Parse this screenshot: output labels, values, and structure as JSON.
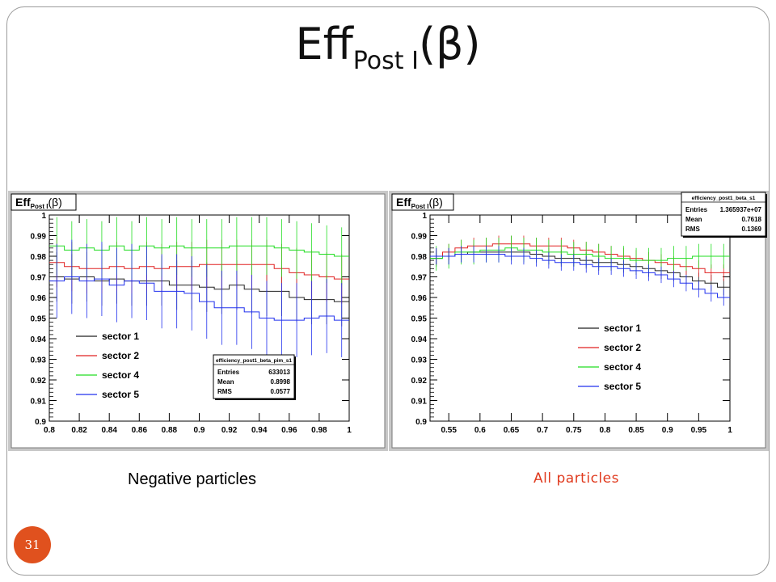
{
  "slide": {
    "title_main": "Eff",
    "title_sub": "Post I",
    "title_tail": "(β)",
    "caption_left": "Negative particles",
    "caption_right": "All particles",
    "page_number": "31"
  },
  "colors": {
    "accent": "#e0511e",
    "caption_right": "#e03a1e"
  },
  "chart_data": [
    {
      "type": "line",
      "title": "Eff",
      "title_sub": "Post I",
      "title_tail": "(β)",
      "xlabel": "",
      "ylabel": "",
      "xlim": [
        0.8,
        1.0
      ],
      "ylim": [
        0.9,
        1.0
      ],
      "x_ticks": [
        "0.8",
        "0.82",
        "0.84",
        "0.86",
        "0.88",
        "0.9",
        "0.92",
        "0.94",
        "0.96",
        "0.98",
        "1"
      ],
      "y_ticks": [
        "0.9",
        "0.91",
        "0.92",
        "0.93",
        "0.94",
        "0.95",
        "0.96",
        "0.97",
        "0.98",
        "0.99",
        "1"
      ],
      "grid": false,
      "legend_position": "bottom-left",
      "x": [
        0.8,
        0.81,
        0.82,
        0.83,
        0.84,
        0.85,
        0.86,
        0.87,
        0.88,
        0.89,
        0.9,
        0.91,
        0.92,
        0.93,
        0.94,
        0.95,
        0.96,
        0.97,
        0.98,
        0.99,
        1.0
      ],
      "series": [
        {
          "name": "sector 1",
          "color": "#222222",
          "values": [
            0.97,
            0.969,
            0.97,
            0.968,
            0.969,
            0.968,
            0.968,
            0.968,
            0.966,
            0.966,
            0.965,
            0.964,
            0.966,
            0.964,
            0.963,
            0.963,
            0.96,
            0.959,
            0.959,
            0.958,
            0.958
          ],
          "error": 0.012
        },
        {
          "name": "sector 2",
          "color": "#e02020",
          "values": [
            0.977,
            0.975,
            0.974,
            0.974,
            0.975,
            0.974,
            0.975,
            0.974,
            0.975,
            0.975,
            0.976,
            0.976,
            0.976,
            0.976,
            0.976,
            0.974,
            0.972,
            0.971,
            0.97,
            0.969,
            0.97
          ],
          "error": 0.012
        },
        {
          "name": "sector 4",
          "color": "#22dd22",
          "values": [
            0.985,
            0.983,
            0.984,
            0.983,
            0.985,
            0.983,
            0.985,
            0.984,
            0.985,
            0.984,
            0.984,
            0.984,
            0.985,
            0.985,
            0.985,
            0.984,
            0.983,
            0.982,
            0.981,
            0.98,
            0.98
          ],
          "error": 0.014
        },
        {
          "name": "sector 5",
          "color": "#2030ee",
          "values": [
            0.968,
            0.97,
            0.968,
            0.969,
            0.966,
            0.968,
            0.967,
            0.963,
            0.963,
            0.962,
            0.958,
            0.955,
            0.955,
            0.953,
            0.95,
            0.949,
            0.949,
            0.95,
            0.951,
            0.949,
            0.949
          ],
          "error": 0.018
        }
      ],
      "stats": {
        "name": "efficiency_post1_beta_pim_s1",
        "entries": "633013",
        "mean": "0.8998",
        "rms": "0.0577"
      },
      "stats_labels": {
        "entries": "Entries",
        "mean": "Mean",
        "rms": "RMS"
      },
      "stats_position": "bottom-right"
    },
    {
      "type": "line",
      "title": "Eff",
      "title_sub": "Post I",
      "title_tail": "(β)",
      "xlabel": "",
      "ylabel": "",
      "xlim": [
        0.52,
        1.0
      ],
      "ylim": [
        0.9,
        1.0
      ],
      "x_ticks": [
        "0.55",
        "0.6",
        "0.65",
        "0.7",
        "0.75",
        "0.8",
        "0.85",
        "0.9",
        "0.95",
        "1"
      ],
      "x_tick_values": [
        0.55,
        0.6,
        0.65,
        0.7,
        0.75,
        0.8,
        0.85,
        0.9,
        0.95,
        1.0
      ],
      "y_ticks": [
        "0.9",
        "0.91",
        "0.92",
        "0.93",
        "0.94",
        "0.95",
        "0.96",
        "0.97",
        "0.98",
        "0.99",
        "1"
      ],
      "grid": false,
      "legend_position": "bottom-right",
      "x": [
        0.52,
        0.54,
        0.56,
        0.58,
        0.6,
        0.62,
        0.64,
        0.66,
        0.68,
        0.7,
        0.72,
        0.74,
        0.76,
        0.78,
        0.8,
        0.82,
        0.84,
        0.86,
        0.88,
        0.9,
        0.92,
        0.94,
        0.96,
        0.98,
        1.0
      ],
      "series": [
        {
          "name": "sector 1",
          "color": "#222222",
          "values": [
            0.979,
            0.98,
            0.981,
            0.982,
            0.982,
            0.982,
            0.982,
            0.982,
            0.981,
            0.98,
            0.979,
            0.979,
            0.978,
            0.977,
            0.977,
            0.976,
            0.975,
            0.974,
            0.973,
            0.972,
            0.97,
            0.968,
            0.967,
            0.965,
            0.965
          ],
          "error": 0.004
        },
        {
          "name": "sector 2",
          "color": "#e02020",
          "values": [
            0.98,
            0.982,
            0.984,
            0.985,
            0.985,
            0.986,
            0.986,
            0.986,
            0.985,
            0.985,
            0.985,
            0.984,
            0.983,
            0.982,
            0.981,
            0.98,
            0.979,
            0.978,
            0.977,
            0.976,
            0.975,
            0.974,
            0.972,
            0.972,
            0.971
          ],
          "error": 0.004
        },
        {
          "name": "sector 4",
          "color": "#22dd22",
          "values": [
            0.979,
            0.98,
            0.982,
            0.982,
            0.983,
            0.983,
            0.984,
            0.983,
            0.983,
            0.982,
            0.982,
            0.981,
            0.981,
            0.98,
            0.979,
            0.979,
            0.978,
            0.978,
            0.978,
            0.979,
            0.979,
            0.98,
            0.98,
            0.98,
            0.98
          ],
          "error": 0.006
        },
        {
          "name": "sector 5",
          "color": "#2030ee",
          "values": [
            0.98,
            0.98,
            0.981,
            0.981,
            0.981,
            0.981,
            0.98,
            0.98,
            0.979,
            0.978,
            0.977,
            0.977,
            0.976,
            0.975,
            0.975,
            0.974,
            0.973,
            0.972,
            0.971,
            0.969,
            0.967,
            0.964,
            0.962,
            0.96,
            0.958
          ],
          "error": 0.004
        }
      ],
      "stats": {
        "name": "efficiency_post1_beta_s1",
        "entries": "1.365937e+07",
        "mean": "0.7618",
        "rms": "0.1369"
      },
      "stats_labels": {
        "entries": "Entries",
        "mean": "Mean",
        "rms": "RMS"
      },
      "stats_position": "top-right"
    }
  ]
}
